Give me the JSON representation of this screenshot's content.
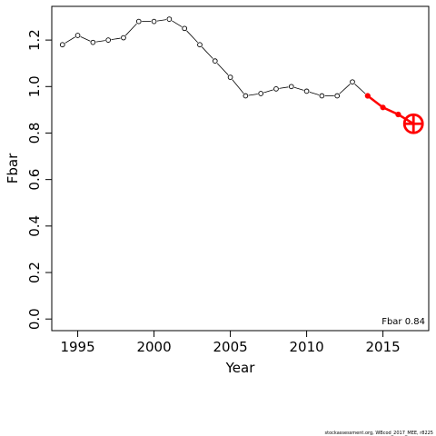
{
  "chart_data": {
    "type": "line",
    "xlabel": "Year",
    "ylabel": "Fbar",
    "xlim": [
      1993.3,
      2018.0
    ],
    "ylim": [
      -0.05,
      1.345
    ],
    "x_ticks": [
      1995,
      2000,
      2005,
      2010,
      2015
    ],
    "x_tick_labels": [
      "1995",
      "2000",
      "2005",
      "2010",
      "2015"
    ],
    "y_ticks": [
      0.0,
      0.2,
      0.4,
      0.6,
      0.8,
      1.0,
      1.2
    ],
    "y_tick_labels": [
      "0.0",
      "0.2",
      "0.4",
      "0.6",
      "0.8",
      "1.0",
      "1.2"
    ],
    "grid": false,
    "colors": {
      "estimate": "#000000",
      "forecast": "#ff0000"
    },
    "series": [
      {
        "x": [
          1994,
          1995,
          1996,
          1997,
          1998,
          1999,
          2000,
          2001,
          2002,
          2003,
          2004,
          2005,
          2006,
          2007,
          2008,
          2009,
          2010,
          2011,
          2012,
          2013,
          2014
        ],
        "values": [
          1.18,
          1.22,
          1.19,
          1.2,
          1.21,
          1.28,
          1.28,
          1.29,
          1.25,
          1.18,
          1.11,
          1.04,
          0.96,
          0.97,
          0.99,
          1.0,
          0.98,
          0.96,
          0.96,
          1.02,
          0.96
        ],
        "marker": "open-circle",
        "style": "thin-line"
      },
      {
        "x": [
          2014,
          2015,
          2016,
          2017
        ],
        "values": [
          0.96,
          0.91,
          0.88,
          0.84
        ],
        "marker": "filled-circle",
        "style": "thick-line",
        "final_marker": "circle-plus"
      }
    ],
    "annotation": "Fbar 0.84"
  },
  "footer": "stockassessment.org, WBcod_2017_MEE, r8225"
}
